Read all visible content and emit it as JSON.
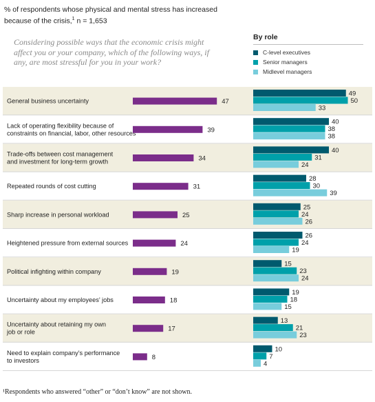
{
  "header": {
    "subtitle": "% of respondents whose physical and mental stress has increased because of the crisis,",
    "subtitle_sup": "1",
    "subtitle_n": " n = 1,653",
    "question": "Considering possible ways that the economic crisis might affect you or your company, which of the following ways, if any, are most stressful for you in your work?"
  },
  "legend": {
    "title": "By role",
    "items": [
      {
        "label": "C-level executives",
        "color": "#005a6e"
      },
      {
        "label": "Senior managers",
        "color": "#00a0aa"
      },
      {
        "label": "Midlevel managers",
        "color": "#78cddc"
      }
    ]
  },
  "footnote": "¹Respondents who answered “other” or “don’t know” are not shown.",
  "chart_data": {
    "type": "bar",
    "categories": [
      [
        "General business uncertainty"
      ],
      [
        "Lack of operating flexibility because of",
        "constraints on financial, labor, other resources"
      ],
      [
        "Trade-offs between cost management",
        "and investment for long-term growth"
      ],
      [
        "Repeated rounds of cost cutting"
      ],
      [
        "Sharp increase in personal workload"
      ],
      [
        "Heightened pressure from external sources"
      ],
      [
        "Political infighting within company"
      ],
      [
        "Uncertainty about my employees’ jobs"
      ],
      [
        "Uncertainty about retaining my own",
        "job or role"
      ],
      [
        "Need to explain company’s performance",
        "to investors"
      ]
    ],
    "total": {
      "color": "#7b2d8a",
      "values": [
        47,
        39,
        34,
        31,
        25,
        24,
        19,
        18,
        17,
        8
      ]
    },
    "series": [
      {
        "name": "C-level executives",
        "color": "#005a6e",
        "values": [
          49,
          40,
          40,
          28,
          25,
          26,
          15,
          19,
          13,
          10
        ]
      },
      {
        "name": "Senior managers",
        "color": "#00a0aa",
        "values": [
          50,
          38,
          31,
          30,
          24,
          24,
          23,
          18,
          21,
          7
        ]
      },
      {
        "name": "Midlevel managers",
        "color": "#78cddc",
        "values": [
          33,
          38,
          24,
          39,
          26,
          19,
          24,
          15,
          23,
          4
        ]
      }
    ],
    "shading": "#f1eedf"
  }
}
